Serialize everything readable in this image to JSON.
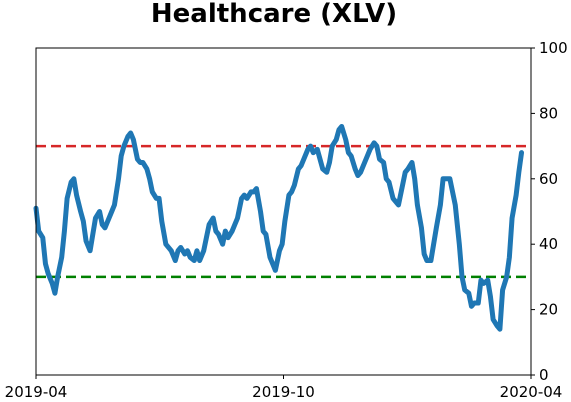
{
  "chart_data": {
    "type": "line",
    "title": "Healthcare (XLV)",
    "xlabel": "",
    "ylabel": "",
    "x_range": [
      "2019-04-01",
      "2020-04-01"
    ],
    "x_ticks": [
      {
        "date": "2019-04-01",
        "label": "2019-04"
      },
      {
        "date": "2019-10-01",
        "label": "2019-10"
      },
      {
        "date": "2020-04-01",
        "label": "2020-04"
      }
    ],
    "ylim": [
      0,
      100
    ],
    "y_ticks": [
      0,
      20,
      40,
      60,
      80,
      100
    ],
    "y_axis_side": "right",
    "grid": false,
    "legend": null,
    "colors": {
      "series": "#1f77b4",
      "upper_threshold": "#d62728",
      "lower_threshold": "#008000"
    },
    "thresholds": [
      {
        "value": 70,
        "color": "#d62728",
        "style": "dashed"
      },
      {
        "value": 30,
        "color": "#008000",
        "style": "dashed"
      }
    ],
    "series": [
      {
        "points": [
          [
            "2019-04-01",
            51
          ],
          [
            "2019-04-03",
            44
          ],
          [
            "2019-04-06",
            42
          ],
          [
            "2019-04-08",
            34
          ],
          [
            "2019-04-10",
            31
          ],
          [
            "2019-04-13",
            28
          ],
          [
            "2019-04-15",
            25
          ],
          [
            "2019-04-17",
            30
          ],
          [
            "2019-04-20",
            36
          ],
          [
            "2019-04-22",
            44
          ],
          [
            "2019-04-24",
            54
          ],
          [
            "2019-04-27",
            59
          ],
          [
            "2019-04-29",
            60
          ],
          [
            "2019-05-01",
            55
          ],
          [
            "2019-05-04",
            50
          ],
          [
            "2019-05-06",
            47
          ],
          [
            "2019-05-08",
            41
          ],
          [
            "2019-05-11",
            38
          ],
          [
            "2019-05-13",
            43
          ],
          [
            "2019-05-15",
            48
          ],
          [
            "2019-05-18",
            50
          ],
          [
            "2019-05-20",
            46
          ],
          [
            "2019-05-22",
            45
          ],
          [
            "2019-05-25",
            48
          ],
          [
            "2019-05-27",
            50
          ],
          [
            "2019-05-29",
            52
          ],
          [
            "2019-06-01",
            60
          ],
          [
            "2019-06-03",
            67
          ],
          [
            "2019-06-05",
            70
          ],
          [
            "2019-06-08",
            73
          ],
          [
            "2019-06-10",
            74
          ],
          [
            "2019-06-12",
            72
          ],
          [
            "2019-06-15",
            66
          ],
          [
            "2019-06-17",
            65
          ],
          [
            "2019-06-19",
            65
          ],
          [
            "2019-06-22",
            63
          ],
          [
            "2019-06-24",
            60
          ],
          [
            "2019-06-26",
            56
          ],
          [
            "2019-06-29",
            54
          ],
          [
            "2019-07-01",
            54
          ],
          [
            "2019-07-03",
            47
          ],
          [
            "2019-07-06",
            40
          ],
          [
            "2019-07-08",
            39
          ],
          [
            "2019-07-10",
            38
          ],
          [
            "2019-07-13",
            35
          ],
          [
            "2019-07-15",
            38
          ],
          [
            "2019-07-17",
            39
          ],
          [
            "2019-07-20",
            37
          ],
          [
            "2019-07-22",
            38
          ],
          [
            "2019-07-24",
            36
          ],
          [
            "2019-07-27",
            35
          ],
          [
            "2019-07-29",
            38
          ],
          [
            "2019-07-31",
            35
          ],
          [
            "2019-08-03",
            38
          ],
          [
            "2019-08-05",
            42
          ],
          [
            "2019-08-07",
            46
          ],
          [
            "2019-08-10",
            48
          ],
          [
            "2019-08-12",
            44
          ],
          [
            "2019-08-14",
            43
          ],
          [
            "2019-08-17",
            40
          ],
          [
            "2019-08-19",
            44
          ],
          [
            "2019-08-21",
            42
          ],
          [
            "2019-08-24",
            44
          ],
          [
            "2019-08-26",
            46
          ],
          [
            "2019-08-28",
            48
          ],
          [
            "2019-08-31",
            54
          ],
          [
            "2019-09-02",
            55
          ],
          [
            "2019-09-04",
            54
          ],
          [
            "2019-09-07",
            56
          ],
          [
            "2019-09-09",
            56
          ],
          [
            "2019-09-11",
            57
          ],
          [
            "2019-09-14",
            50
          ],
          [
            "2019-09-16",
            44
          ],
          [
            "2019-09-18",
            43
          ],
          [
            "2019-09-21",
            36
          ],
          [
            "2019-09-23",
            34
          ],
          [
            "2019-09-25",
            32
          ],
          [
            "2019-09-28",
            38
          ],
          [
            "2019-09-30",
            40
          ],
          [
            "2019-10-02",
            47
          ],
          [
            "2019-10-05",
            55
          ],
          [
            "2019-10-07",
            56
          ],
          [
            "2019-10-09",
            58
          ],
          [
            "2019-10-12",
            63
          ],
          [
            "2019-10-14",
            64
          ],
          [
            "2019-10-16",
            66
          ],
          [
            "2019-10-19",
            69
          ],
          [
            "2019-10-21",
            70
          ],
          [
            "2019-10-23",
            68
          ],
          [
            "2019-10-26",
            69
          ],
          [
            "2019-10-28",
            66
          ],
          [
            "2019-10-30",
            63
          ],
          [
            "2019-11-02",
            62
          ],
          [
            "2019-11-04",
            65
          ],
          [
            "2019-11-06",
            70
          ],
          [
            "2019-11-09",
            72
          ],
          [
            "2019-11-11",
            75
          ],
          [
            "2019-11-13",
            76
          ],
          [
            "2019-11-16",
            72
          ],
          [
            "2019-11-18",
            68
          ],
          [
            "2019-11-20",
            67
          ],
          [
            "2019-11-23",
            63
          ],
          [
            "2019-11-25",
            61
          ],
          [
            "2019-11-27",
            62
          ],
          [
            "2019-11-30",
            65
          ],
          [
            "2019-12-02",
            67
          ],
          [
            "2019-12-04",
            69
          ],
          [
            "2019-12-07",
            71
          ],
          [
            "2019-12-09",
            70
          ],
          [
            "2019-12-11",
            66
          ],
          [
            "2019-12-14",
            65
          ],
          [
            "2019-12-16",
            60
          ],
          [
            "2019-12-18",
            59
          ],
          [
            "2019-12-21",
            54
          ],
          [
            "2019-12-23",
            53
          ],
          [
            "2019-12-25",
            52
          ],
          [
            "2019-12-28",
            58
          ],
          [
            "2019-12-30",
            62
          ],
          [
            "2020-01-01",
            63
          ],
          [
            "2020-01-04",
            65
          ],
          [
            "2020-01-06",
            60
          ],
          [
            "2020-01-08",
            52
          ],
          [
            "2020-01-11",
            45
          ],
          [
            "2020-01-13",
            37
          ],
          [
            "2020-01-15",
            35
          ],
          [
            "2020-01-18",
            35
          ],
          [
            "2020-01-20",
            40
          ],
          [
            "2020-01-22",
            45
          ],
          [
            "2020-01-25",
            52
          ],
          [
            "2020-01-27",
            60
          ],
          [
            "2020-01-29",
            60
          ],
          [
            "2020-02-01",
            60
          ],
          [
            "2020-02-03",
            56
          ],
          [
            "2020-02-05",
            52
          ],
          [
            "2020-02-08",
            40
          ],
          [
            "2020-02-10",
            30
          ],
          [
            "2020-02-12",
            26
          ],
          [
            "2020-02-15",
            25
          ],
          [
            "2020-02-17",
            21
          ],
          [
            "2020-02-19",
            22
          ],
          [
            "2020-02-22",
            22
          ],
          [
            "2020-02-24",
            29
          ],
          [
            "2020-02-26",
            28
          ],
          [
            "2020-02-29",
            29
          ],
          [
            "2020-03-02",
            24
          ],
          [
            "2020-03-04",
            17
          ],
          [
            "2020-03-07",
            15
          ],
          [
            "2020-03-09",
            14
          ],
          [
            "2020-03-11",
            26
          ],
          [
            "2020-03-14",
            30
          ],
          [
            "2020-03-16",
            36
          ],
          [
            "2020-03-18",
            48
          ],
          [
            "2020-03-21",
            55
          ],
          [
            "2020-03-23",
            62
          ],
          [
            "2020-03-25",
            68
          ]
        ]
      }
    ]
  }
}
